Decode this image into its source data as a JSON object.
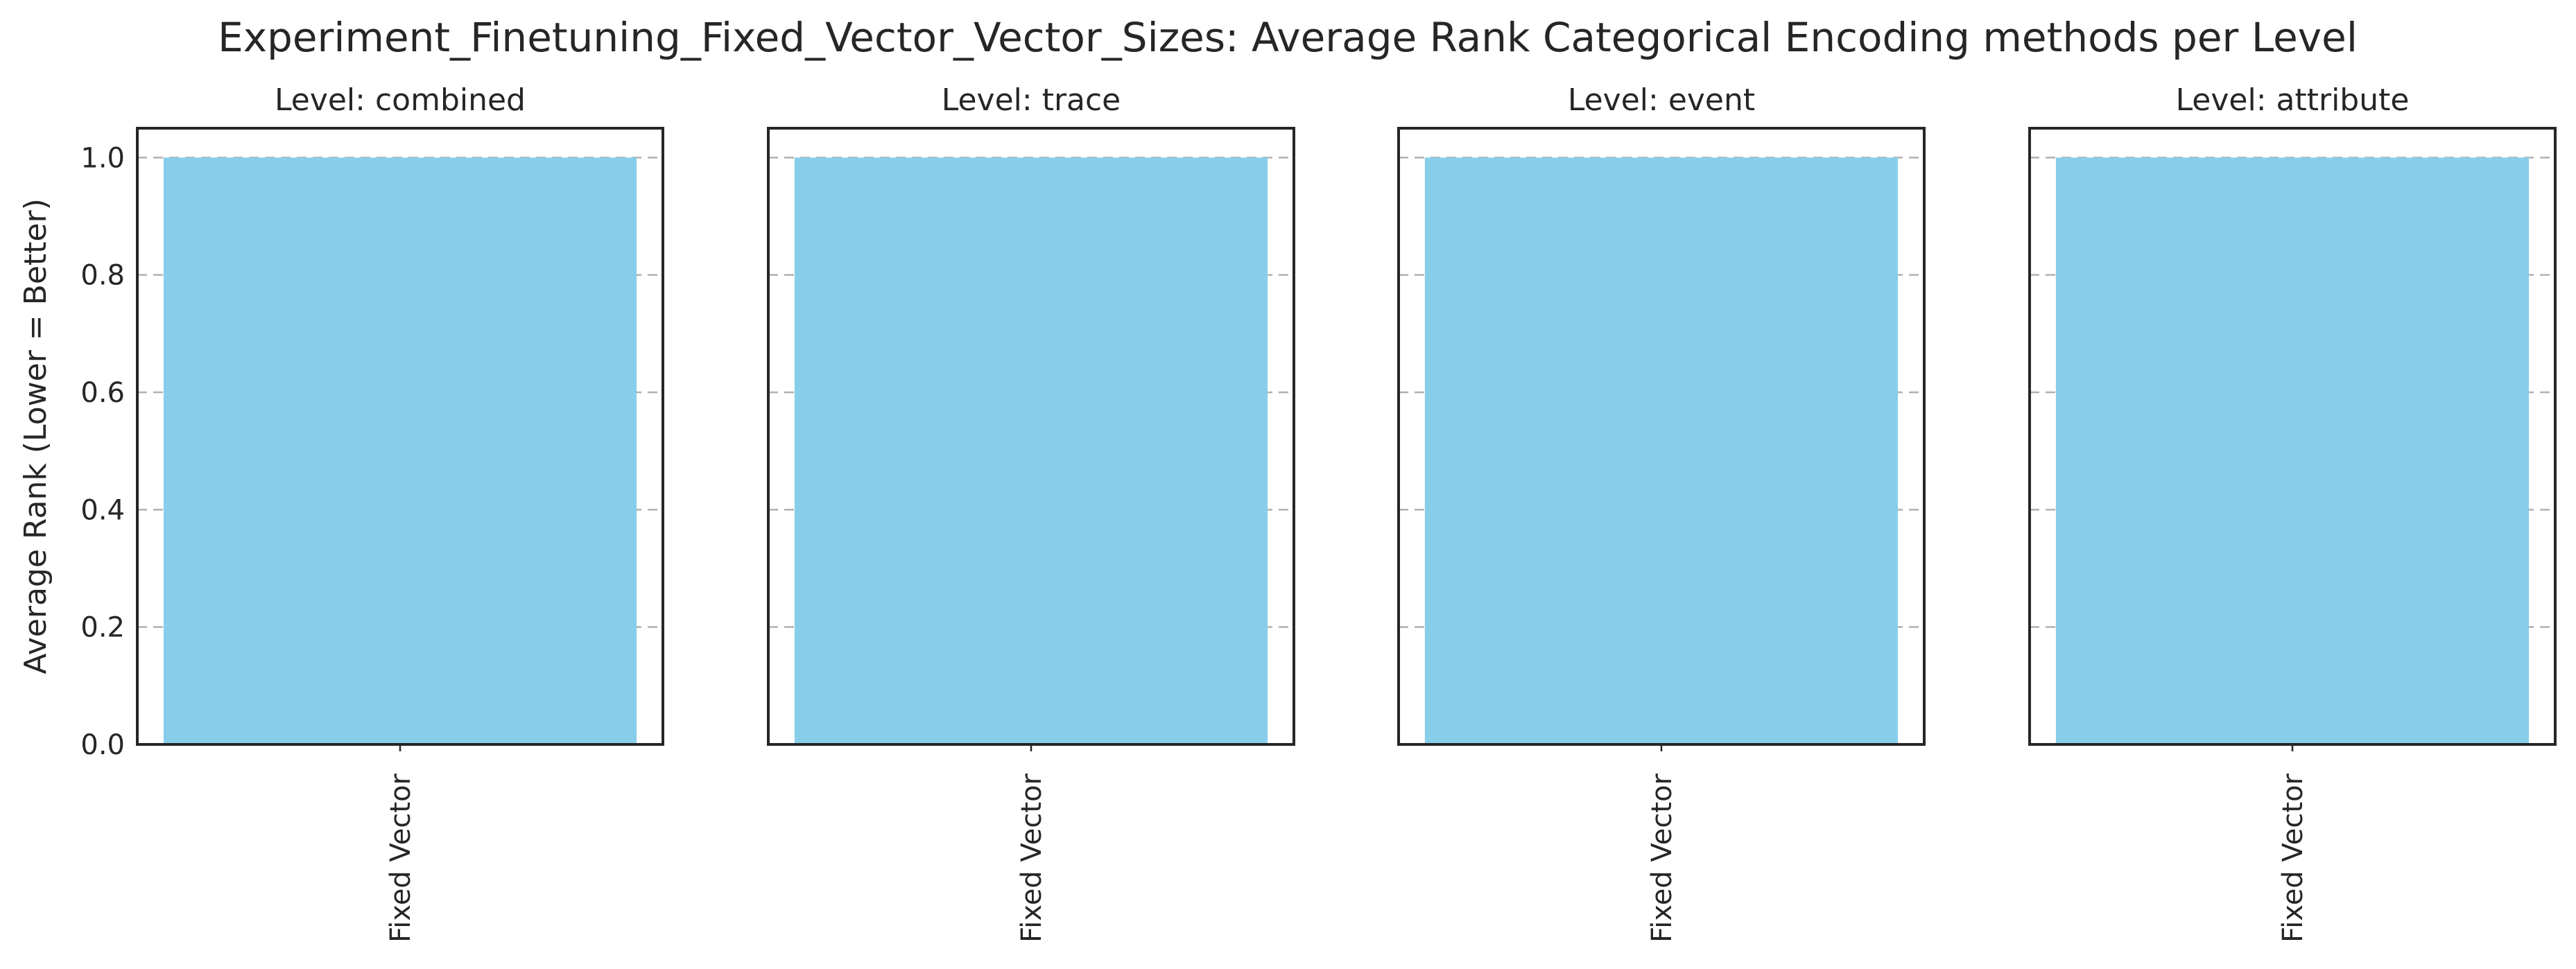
{
  "title": "Experiment_Finetuning_Fixed_Vector_Vector_Sizes: Average Rank Categorical Encoding methods per Level",
  "colors": {
    "bar": "#87CEEB",
    "frame": "#262626",
    "grid": "#b0b0b0",
    "background": "#ffffff"
  },
  "chart_data": [
    {
      "type": "bar",
      "title": "Level: combined",
      "categories": [
        "Fixed Vector"
      ],
      "values": [
        1.0
      ],
      "ylabel": "Average Rank (Lower = Better)",
      "ylim": [
        0,
        1.05
      ],
      "yticks": [
        "0.0",
        "0.2",
        "0.4",
        "0.6",
        "0.8",
        "1.0"
      ],
      "grid": "y-dashed",
      "show_ytick_labels": true
    },
    {
      "type": "bar",
      "title": "Level: trace",
      "categories": [
        "Fixed Vector"
      ],
      "values": [
        1.0
      ],
      "ylim": [
        0,
        1.05
      ],
      "grid": "y-dashed",
      "show_ytick_labels": false
    },
    {
      "type": "bar",
      "title": "Level: event",
      "categories": [
        "Fixed Vector"
      ],
      "values": [
        1.0
      ],
      "ylim": [
        0,
        1.05
      ],
      "grid": "y-dashed",
      "show_ytick_labels": false
    },
    {
      "type": "bar",
      "title": "Level: attribute",
      "categories": [
        "Fixed Vector"
      ],
      "values": [
        1.0
      ],
      "ylim": [
        0,
        1.05
      ],
      "grid": "y-dashed",
      "show_ytick_labels": false
    }
  ]
}
